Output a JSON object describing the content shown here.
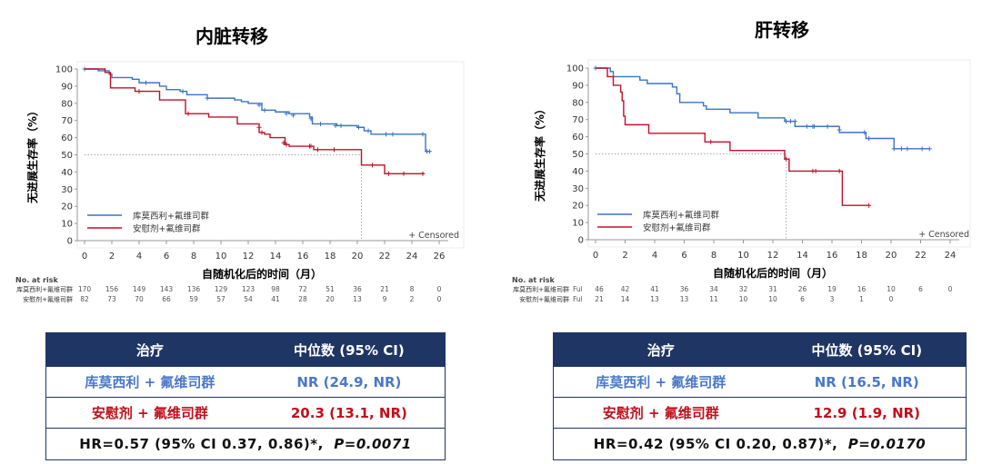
{
  "colors": {
    "blue": "#3a74c4",
    "red": "#c0102c",
    "navy": "#1f3564"
  },
  "chart_data": [
    {
      "type": "line",
      "title": "内脏转移",
      "ylabel": "无进展生存率（%）",
      "xlabel": "自随机化后的时间（月）",
      "xlim": [
        0,
        26
      ],
      "ylim": [
        0,
        100
      ],
      "xticks": [
        0,
        2,
        4,
        6,
        8,
        10,
        12,
        14,
        16,
        18,
        20,
        22,
        24,
        26
      ],
      "yticks": [
        0,
        10,
        20,
        30,
        40,
        50,
        60,
        70,
        80,
        90,
        100
      ],
      "legend_placement": "bottom-left",
      "censored_label": "+ Censored",
      "median_line": {
        "y": 50,
        "x": 20.3
      },
      "series": [
        {
          "name": "库莫西利+氟维司群",
          "color": "#3a74c4",
          "steps": [
            [
              0,
              100
            ],
            [
              1,
              99
            ],
            [
              1.8,
              97
            ],
            [
              2,
              95
            ],
            [
              3.5,
              94
            ],
            [
              4,
              92
            ],
            [
              5.5,
              90
            ],
            [
              6,
              88
            ],
            [
              7,
              87
            ],
            [
              7.5,
              85
            ],
            [
              9,
              83
            ],
            [
              11,
              82
            ],
            [
              11.5,
              81
            ],
            [
              12,
              80
            ],
            [
              13,
              76
            ],
            [
              14,
              75
            ],
            [
              15,
              74
            ],
            [
              16.5,
              72
            ],
            [
              16.7,
              68
            ],
            [
              18.5,
              67
            ],
            [
              20,
              66
            ],
            [
              20.5,
              64
            ],
            [
              21,
              62
            ],
            [
              25,
              62
            ],
            [
              25,
              52
            ],
            [
              25.3,
              52
            ]
          ],
          "censored": [
            [
              0,
              100
            ],
            [
              4.5,
              92
            ],
            [
              7.2,
              87
            ],
            [
              9,
              83
            ],
            [
              12.8,
              79
            ],
            [
              13.2,
              76
            ],
            [
              14.8,
              74
            ],
            [
              15.3,
              73
            ],
            [
              16.6,
              71
            ],
            [
              17.3,
              68
            ],
            [
              18.4,
              67
            ],
            [
              18.8,
              67
            ],
            [
              20.1,
              66
            ],
            [
              20.8,
              64
            ],
            [
              22.1,
              62
            ],
            [
              22.6,
              62
            ],
            [
              24.8,
              62
            ],
            [
              25.1,
              52
            ],
            [
              25.3,
              52
            ]
          ],
          "at_risk": [
            170,
            156,
            149,
            143,
            136,
            129,
            123,
            98,
            72,
            51,
            36,
            21,
            8,
            0
          ]
        },
        {
          "name": "安慰剂+氟维司群",
          "color": "#c0102c",
          "steps": [
            [
              0,
              100
            ],
            [
              1.5,
              98
            ],
            [
              1.9,
              89
            ],
            [
              3.7,
              87
            ],
            [
              5.5,
              82
            ],
            [
              7.4,
              74
            ],
            [
              9.1,
              72
            ],
            [
              11.2,
              68
            ],
            [
              12.8,
              63
            ],
            [
              13.2,
              62
            ],
            [
              13.6,
              60
            ],
            [
              14.7,
              56
            ],
            [
              15,
              55
            ],
            [
              16.8,
              53
            ],
            [
              20.2,
              53
            ],
            [
              20.3,
              44
            ],
            [
              22,
              39
            ],
            [
              24.9,
              39
            ]
          ],
          "censored": [
            [
              4,
              87
            ],
            [
              7.6,
              74
            ],
            [
              12.8,
              66
            ],
            [
              13,
              63
            ],
            [
              14.6,
              57
            ],
            [
              14.8,
              56
            ],
            [
              16.5,
              55
            ],
            [
              16.6,
              55
            ],
            [
              17.1,
              53
            ],
            [
              18.3,
              53
            ],
            [
              21.1,
              44
            ],
            [
              22.3,
              39
            ],
            [
              23.4,
              39
            ],
            [
              24.8,
              39
            ]
          ],
          "at_risk": [
            82,
            73,
            70,
            66,
            59,
            57,
            54,
            41,
            28,
            20,
            13,
            9,
            2,
            0
          ]
        }
      ]
    },
    {
      "type": "line",
      "title": "肝转移",
      "ylabel": "无进展生存率（%）",
      "xlabel": "自随机化后的时间（月）",
      "xlim": [
        0,
        24
      ],
      "ylim": [
        0,
        100
      ],
      "xticks": [
        0,
        2,
        4,
        6,
        8,
        10,
        12,
        14,
        16,
        18,
        20,
        22,
        24
      ],
      "yticks": [
        0,
        10,
        20,
        30,
        40,
        50,
        60,
        70,
        80,
        90,
        100
      ],
      "legend_placement": "bottom-left",
      "censored_label": "+ Censored",
      "median_line": {
        "y": 50,
        "x": 12.9
      },
      "row_prefix": "Ful",
      "series": [
        {
          "name": "库莫西利+氟维司群",
          "color": "#3a74c4",
          "steps": [
            [
              0,
              100
            ],
            [
              1,
              98
            ],
            [
              1.2,
              95
            ],
            [
              3,
              93
            ],
            [
              3.5,
              91
            ],
            [
              5.2,
              89
            ],
            [
              5.5,
              85
            ],
            [
              5.7,
              80
            ],
            [
              7.3,
              78
            ],
            [
              7.5,
              76
            ],
            [
              9.1,
              74
            ],
            [
              11,
              71
            ],
            [
              12.8,
              69
            ],
            [
              13.5,
              66
            ],
            [
              16.5,
              62.5
            ],
            [
              18.3,
              59
            ],
            [
              20.2,
              53
            ],
            [
              22.6,
              53
            ]
          ],
          "censored": [
            [
              0,
              100
            ],
            [
              12.9,
              69
            ],
            [
              13.2,
              69
            ],
            [
              13.5,
              69
            ],
            [
              14.3,
              66
            ],
            [
              14.7,
              66
            ],
            [
              14.8,
              66
            ],
            [
              15.7,
              66
            ],
            [
              16.5,
              64
            ],
            [
              18.2,
              62.5
            ],
            [
              18.5,
              59
            ],
            [
              20.2,
              53
            ],
            [
              20.7,
              53
            ],
            [
              21.1,
              53
            ],
            [
              22.1,
              53
            ],
            [
              22.6,
              53
            ]
          ],
          "at_risk": [
            46,
            42,
            41,
            36,
            34,
            32,
            31,
            26,
            19,
            16,
            10,
            6,
            0
          ]
        },
        {
          "name": "安慰剂+氟维司群",
          "color": "#c0102c",
          "steps": [
            [
              0,
              100
            ],
            [
              0.8,
              95
            ],
            [
              1.2,
              90
            ],
            [
              1.7,
              86
            ],
            [
              1.8,
              81
            ],
            [
              1.9,
              72
            ],
            [
              2,
              67
            ],
            [
              3.6,
              62
            ],
            [
              7.4,
              57
            ],
            [
              9.1,
              52
            ],
            [
              12.8,
              47
            ],
            [
              13.1,
              40
            ],
            [
              16.7,
              20
            ],
            [
              18.5,
              20
            ]
          ],
          "censored": [
            [
              7.8,
              57
            ],
            [
              12.9,
              47
            ],
            [
              14.7,
              40
            ],
            [
              14.9,
              40
            ],
            [
              16.5,
              40
            ],
            [
              18.5,
              20
            ]
          ],
          "at_risk": [
            21,
            14,
            13,
            13,
            11,
            10,
            10,
            6,
            3,
            1,
            0
          ]
        }
      ]
    }
  ],
  "risk_header": "No. at risk",
  "tables": [
    {
      "header": [
        "治疗",
        "中位数 (95% CI)"
      ],
      "rows": [
        [
          "库莫西利 + 氟维司群",
          "NR (24.9, NR)"
        ],
        [
          "安慰剂 + 氟维司群",
          "20.3 (13.1, NR)"
        ]
      ],
      "hr": "HR=0.57 (95% CI 0.37, 0.86)*,",
      "p": "P=0.0071"
    },
    {
      "header": [
        "治疗",
        "中位数 (95% CI)"
      ],
      "rows": [
        [
          "库莫西利 + 氟维司群",
          "NR (16.5, NR)"
        ],
        [
          "安慰剂 + 氟维司群",
          "12.9 (1.9, NR)"
        ]
      ],
      "hr": "HR=0.42 (95% CI 0.20, 0.87)*,",
      "p": "P=0.0170"
    }
  ]
}
